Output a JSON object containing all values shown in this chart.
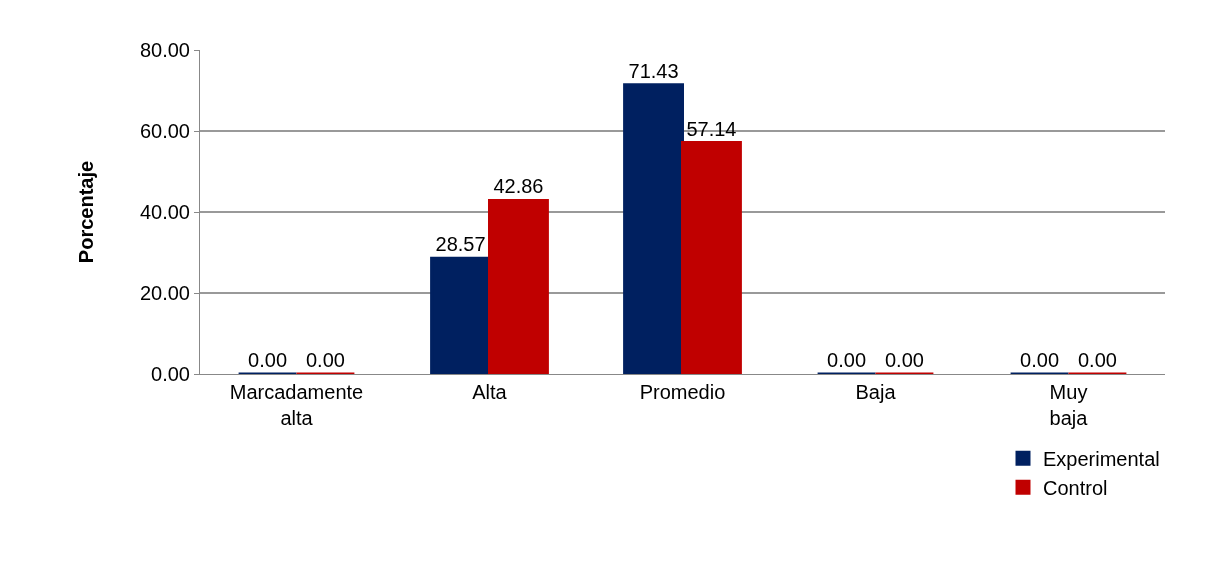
{
  "chart_data": {
    "type": "bar",
    "ylabel": "Porcentaje",
    "categories": [
      "Marcadamente alta",
      "Alta",
      "Promedio",
      "Baja",
      "Muy baja"
    ],
    "series": [
      {
        "name": "Experimental",
        "color": "#002060",
        "values": [
          0,
          28.57,
          71.43,
          0,
          0
        ],
        "value_labels": [
          "0.00",
          "28.57",
          "71.43",
          "0.00",
          "0.00"
        ]
      },
      {
        "name": "Control",
        "color": "#c00000",
        "values": [
          0,
          42.86,
          57.14,
          0,
          0
        ],
        "value_labels": [
          "0.00",
          "42.86",
          "57.14",
          "0.00",
          "0.00"
        ]
      }
    ],
    "ylim": [
      0,
      80
    ],
    "yticks": [
      {
        "value": 0,
        "label": "0.00"
      },
      {
        "value": 20,
        "label": "20.00"
      },
      {
        "value": 40,
        "label": "40.00"
      },
      {
        "value": 60,
        "label": "60.00"
      },
      {
        "value": 80,
        "label": "80.00"
      }
    ],
    "grid": "y",
    "legend": "bottom right"
  }
}
